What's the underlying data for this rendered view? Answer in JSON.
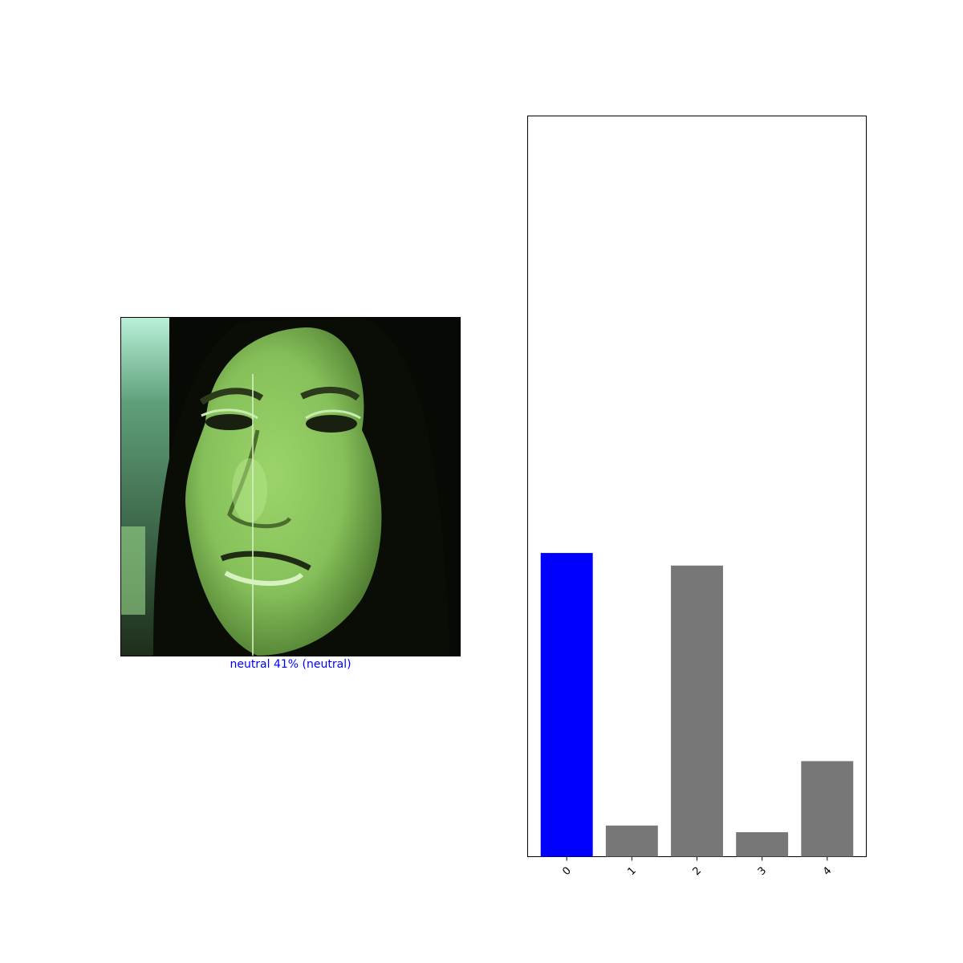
{
  "image_panel": {
    "caption": "neutral 41% (neutral)",
    "caption_color": "#0000ff"
  },
  "chart_data": {
    "type": "bar",
    "categories": [
      "0",
      "1",
      "2",
      "3",
      "4"
    ],
    "values": [
      0.41,
      0.042,
      0.393,
      0.033,
      0.129
    ],
    "ylim": [
      0,
      1
    ],
    "colors": [
      "#0000ff",
      "#777777",
      "#777777",
      "#777777",
      "#777777"
    ],
    "title": "",
    "xlabel": "",
    "ylabel": "",
    "yticks_visible": false,
    "grid": false
  }
}
